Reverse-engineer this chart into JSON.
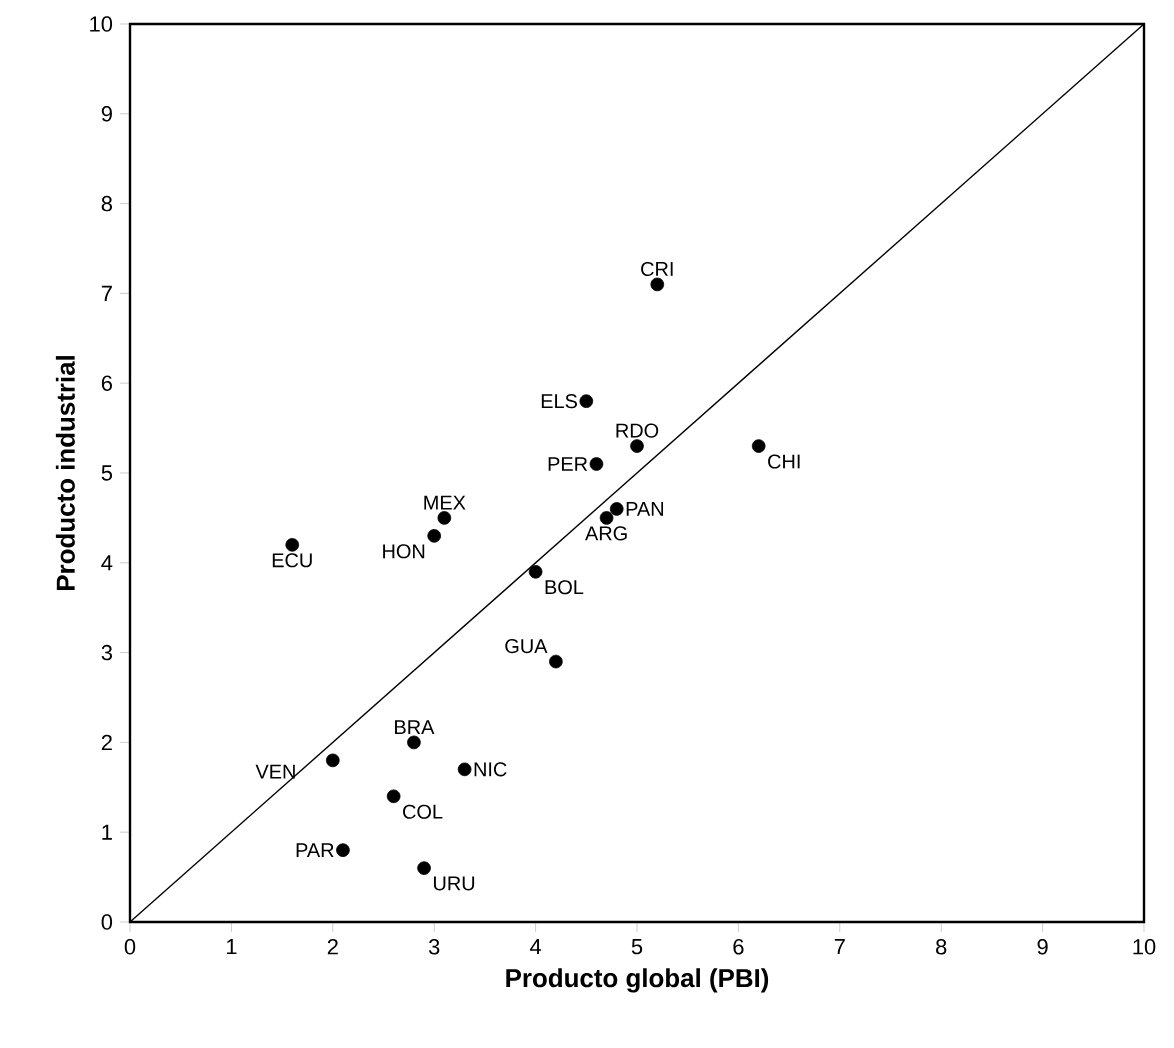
{
  "chart_data": {
    "type": "scatter",
    "xlabel": "Producto global (PBI)",
    "ylabel": "Producto industrial",
    "xlim": [
      0,
      10
    ],
    "ylim": [
      0,
      10
    ],
    "xticks": [
      0,
      1,
      2,
      3,
      4,
      5,
      6,
      7,
      8,
      9,
      10
    ],
    "yticks": [
      0,
      1,
      2,
      3,
      4,
      5,
      6,
      7,
      8,
      9,
      10
    ],
    "series": [
      {
        "type": "scatter",
        "color": "#000000",
        "marker": "circle",
        "x": [
          5.2,
          4.5,
          5.0,
          4.6,
          6.2,
          4.8,
          4.7,
          3.1,
          3.0,
          1.6,
          4.0,
          4.2,
          2.8,
          2.0,
          3.3,
          2.6,
          2.1,
          2.9
        ],
        "values": [
          7.1,
          5.8,
          5.3,
          5.1,
          5.3,
          4.6,
          4.5,
          4.5,
          4.3,
          4.2,
          3.9,
          2.9,
          2.0,
          1.8,
          1.7,
          1.4,
          0.8,
          0.6
        ]
      },
      {
        "type": "line",
        "color": "#000000",
        "marker": "none",
        "x": [
          0,
          10
        ],
        "values": [
          0,
          10
        ]
      }
    ],
    "annotations": [
      {
        "text": "CRI",
        "x": 5.2,
        "y": 7.1
      },
      {
        "text": "ELS",
        "x": 4.5,
        "y": 5.8
      },
      {
        "text": "RDO",
        "x": 5.0,
        "y": 5.3
      },
      {
        "text": "PER",
        "x": 4.6,
        "y": 5.1
      },
      {
        "text": "CHI",
        "x": 6.2,
        "y": 5.3
      },
      {
        "text": "PAN",
        "x": 4.8,
        "y": 4.6
      },
      {
        "text": "ARG",
        "x": 4.7,
        "y": 4.5
      },
      {
        "text": "MEX",
        "x": 3.1,
        "y": 4.5
      },
      {
        "text": "HON",
        "x": 3.0,
        "y": 4.3
      },
      {
        "text": "ECU",
        "x": 1.6,
        "y": 4.2
      },
      {
        "text": "BOL",
        "x": 4.0,
        "y": 3.9
      },
      {
        "text": "GUA",
        "x": 4.2,
        "y": 2.9
      },
      {
        "text": "BRA",
        "x": 2.8,
        "y": 2.0
      },
      {
        "text": "VEN",
        "x": 2.0,
        "y": 1.8
      },
      {
        "text": "NIC",
        "x": 3.3,
        "y": 1.7
      },
      {
        "text": "COL",
        "x": 2.6,
        "y": 1.4
      },
      {
        "text": "PAR",
        "x": 2.1,
        "y": 0.8
      },
      {
        "text": "URU",
        "x": 2.9,
        "y": 0.6
      }
    ]
  }
}
